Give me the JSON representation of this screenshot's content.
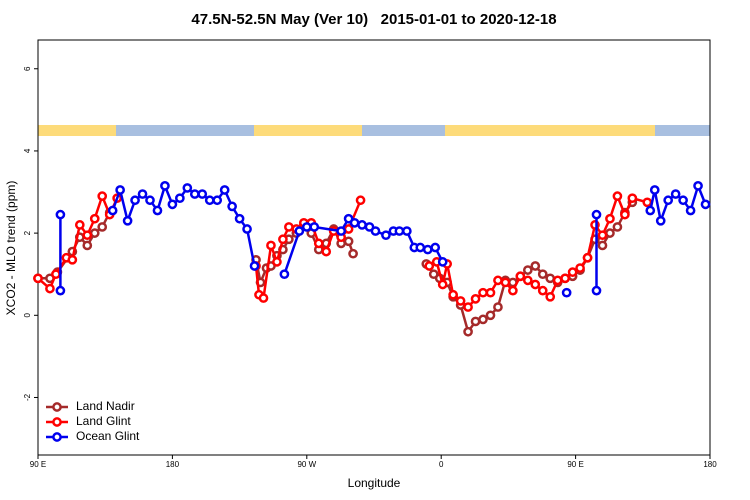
{
  "chart_data": {
    "type": "line",
    "title": "47.5N-52.5N May (Ver 10)   2015-01-01 to 2020-12-18",
    "xlabel": "Longitude",
    "ylabel": "XCO2 - MLO trend (ppm)",
    "xlim": [
      90,
      540
    ],
    "xticks": [
      {
        "value": 90,
        "label": "90 E"
      },
      180,
      {
        "value": 270,
        "label": "90 W"
      },
      {
        "value": 360,
        "label": "0"
      },
      {
        "value": 450,
        "label": "90 E"
      },
      {
        "value": 540,
        "label": "180"
      }
    ],
    "ylim": [
      -3.4,
      6.7
    ],
    "yticks": [
      -2,
      0,
      2,
      4,
      6
    ],
    "legend": "bottom-left",
    "series": [
      {
        "name": "Land Nadir",
        "color": "#a52a2a",
        "x": [
          90,
          98,
          103,
          113,
          118,
          123,
          128,
          133,
          138,
          null,
          236,
          239,
          243,
          246,
          250,
          254,
          258,
          263,
          268,
          273,
          278,
          283,
          288,
          293,
          298,
          301,
          null,
          350,
          355,
          359,
          364,
          368,
          373,
          378,
          383,
          388,
          393,
          398,
          403,
          408,
          413,
          418,
          423,
          428,
          433,
          438,
          443,
          448,
          453,
          458,
          463,
          468,
          473,
          478,
          483,
          488
        ],
        "values": [
          0.9,
          0.9,
          1.05,
          1.55,
          1.9,
          1.7,
          2.0,
          2.15,
          2.5,
          null,
          1.35,
          0.8,
          1.15,
          1.2,
          1.45,
          1.6,
          1.85,
          2.0,
          2.2,
          2.0,
          1.6,
          1.75,
          2.1,
          1.75,
          1.8,
          1.5,
          null,
          1.25,
          1.0,
          0.9,
          0.8,
          0.45,
          0.25,
          -0.4,
          -0.15,
          -0.1,
          0.0,
          0.2,
          0.85,
          0.8,
          0.95,
          1.1,
          1.2,
          1.0,
          0.9,
          0.8,
          0.9,
          0.95,
          1.1,
          1.4,
          1.85,
          1.7,
          2.0,
          2.15,
          2.5,
          2.75
        ]
      },
      {
        "name": "Land Glint",
        "color": "#ff0000",
        "x": [
          90,
          98,
          102,
          109,
          113,
          118,
          123,
          128,
          133,
          138,
          143,
          null,
          236,
          238,
          241,
          246,
          250,
          254,
          258,
          263,
          268,
          273,
          278,
          283,
          288,
          293,
          298,
          306,
          null,
          352,
          357,
          361,
          364,
          368,
          373,
          378,
          383,
          388,
          393,
          398,
          403,
          408,
          413,
          418,
          423,
          428,
          433,
          438,
          443,
          448,
          453,
          458,
          463,
          468,
          473,
          478,
          483,
          488,
          498
        ],
        "values": [
          0.9,
          0.65,
          1.0,
          1.4,
          1.35,
          2.2,
          1.95,
          2.35,
          2.9,
          2.45,
          2.85,
          null,
          1.2,
          0.5,
          0.42,
          1.7,
          1.3,
          1.85,
          2.15,
          2.1,
          2.25,
          2.25,
          1.75,
          1.55,
          2.05,
          1.9,
          2.1,
          2.8,
          null,
          1.2,
          1.3,
          0.75,
          1.25,
          0.5,
          0.35,
          0.2,
          0.4,
          0.55,
          0.55,
          0.85,
          0.8,
          0.6,
          0.95,
          0.85,
          0.75,
          0.6,
          0.45,
          0.85,
          0.9,
          1.05,
          1.15,
          1.4,
          2.2,
          1.95,
          2.35,
          2.9,
          2.45,
          2.85,
          2.75
        ]
      },
      {
        "name": "Ocean Glint",
        "color": "#0000ee",
        "x": [
          105,
          105,
          null,
          140,
          145,
          150,
          155,
          160,
          165,
          170,
          175,
          180,
          185,
          190,
          195,
          200,
          205,
          210,
          215,
          220,
          225,
          230,
          235,
          null,
          255,
          265,
          270,
          275,
          293,
          298,
          302,
          307,
          312,
          316,
          323,
          328,
          332,
          337,
          342,
          346,
          351,
          356,
          361,
          null,
          444,
          null,
          464,
          464,
          null,
          500,
          503,
          507,
          512,
          517,
          522,
          527,
          532,
          537
        ],
        "values": [
          2.45,
          0.6,
          null,
          2.55,
          3.05,
          2.3,
          2.8,
          2.95,
          2.8,
          2.55,
          3.15,
          2.7,
          2.85,
          3.1,
          2.95,
          2.95,
          2.8,
          2.8,
          3.05,
          2.65,
          2.35,
          2.1,
          1.2,
          null,
          1.0,
          2.05,
          2.15,
          2.15,
          2.05,
          2.35,
          2.25,
          2.2,
          2.15,
          2.05,
          1.95,
          2.05,
          2.05,
          2.05,
          1.65,
          1.65,
          1.6,
          1.65,
          1.3,
          null,
          0.55,
          null,
          2.45,
          0.6,
          null,
          2.55,
          3.05,
          2.3,
          2.8,
          2.95,
          2.8,
          2.55,
          3.15,
          2.7
        ]
      }
    ]
  }
}
